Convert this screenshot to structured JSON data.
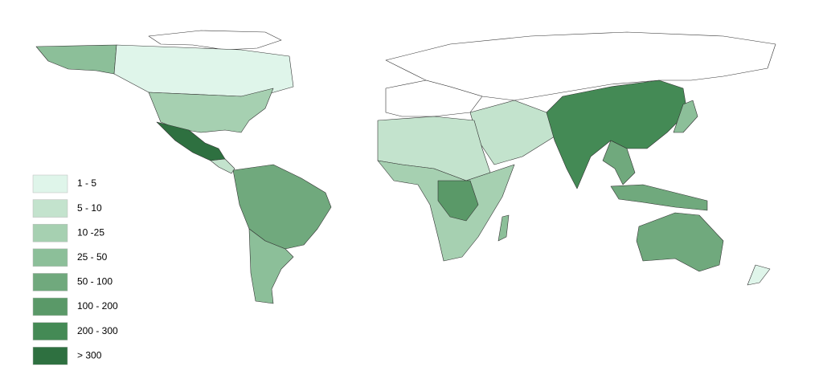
{
  "legend": [
    {
      "label": "1 -  5",
      "color": "#dff5ea"
    },
    {
      "label": "5 - 10",
      "color": "#c3e3cd"
    },
    {
      "label": "10 -25",
      "color": "#a6d0b1"
    },
    {
      "label": "25 - 50",
      "color": "#8cbf99"
    },
    {
      "label": "50 - 100",
      "color": "#70a97d"
    },
    {
      "label": "100 - 200",
      "color": "#5a9968"
    },
    {
      "label": "200 - 300",
      "color": "#448a55"
    },
    {
      "label": "> 300",
      "color": "#2e7040"
    }
  ]
}
